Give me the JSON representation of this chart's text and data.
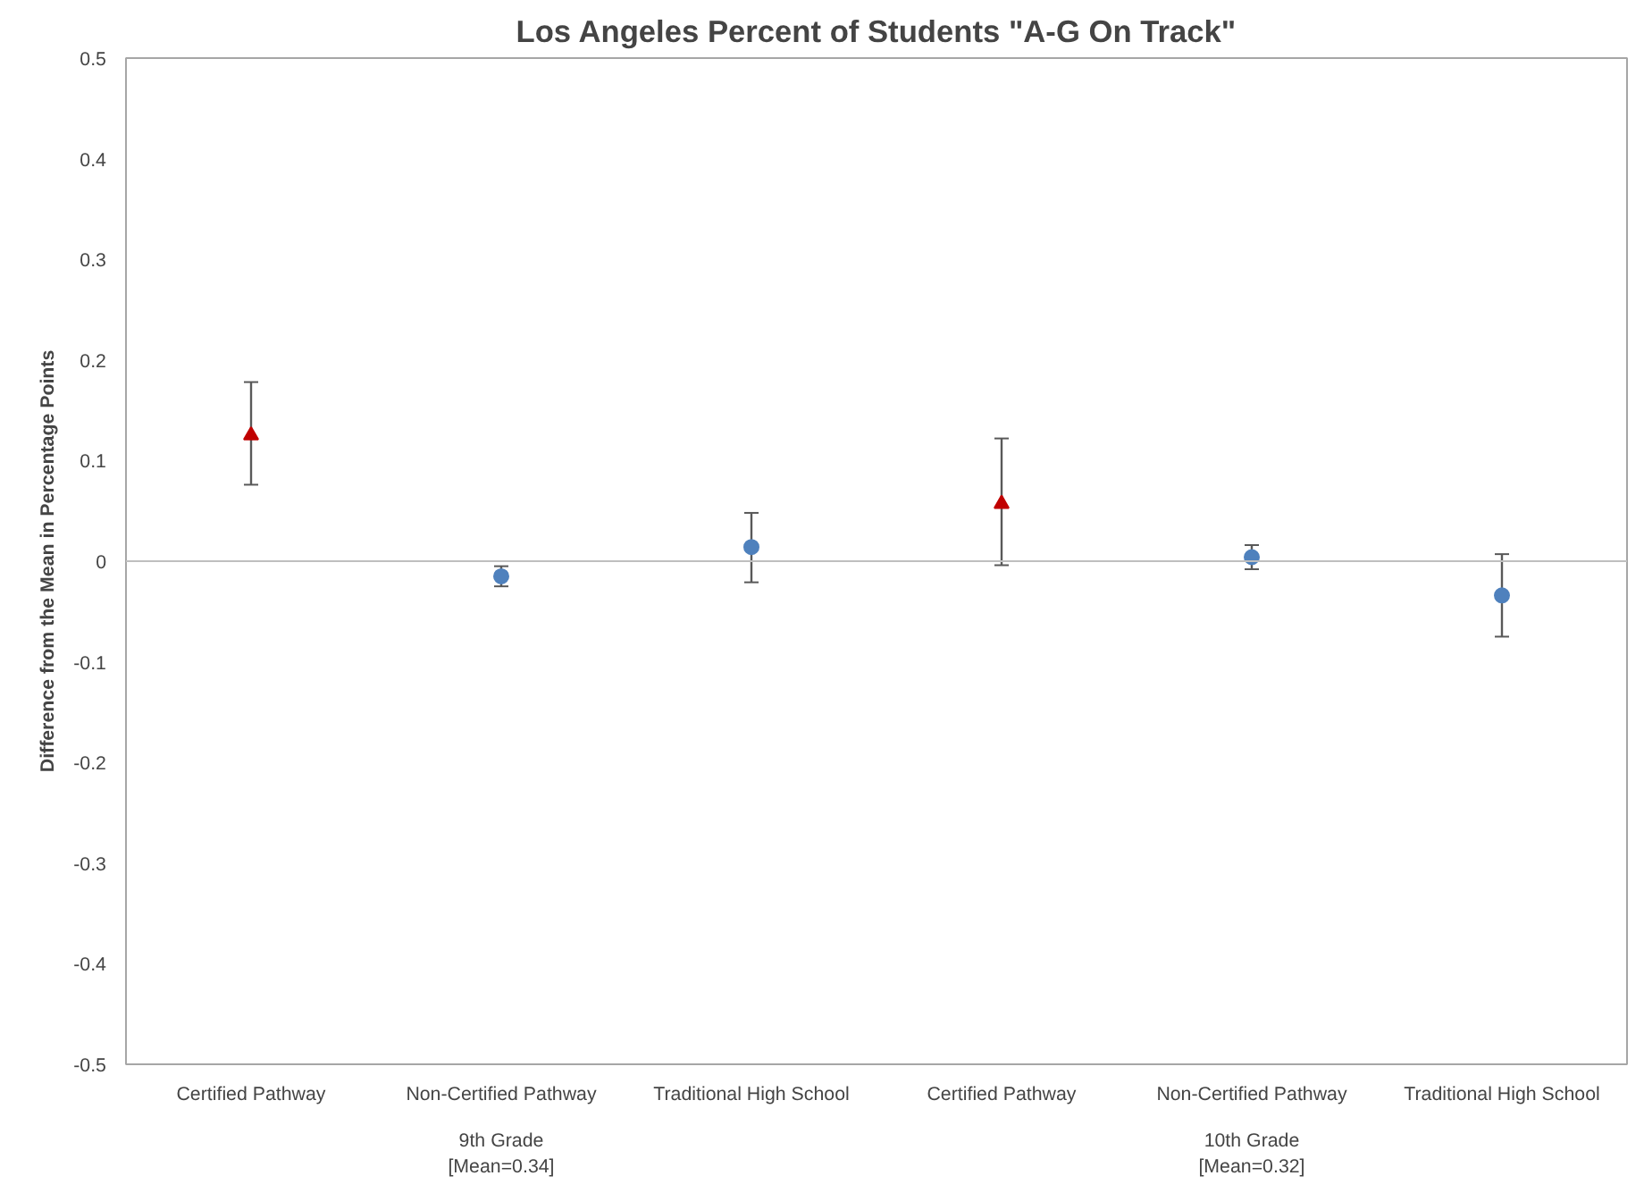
{
  "chart_data": {
    "type": "scatter",
    "title": "Los Angeles Percent of Students \"A-G On Track\"",
    "ylabel": "Difference from the Mean in Percentage Points",
    "categories": [
      "Certified Pathway",
      "Non-Certified Pathway",
      "Traditional High School",
      "Certified Pathway",
      "Non-Certified Pathway",
      "Traditional High School"
    ],
    "series": [
      {
        "color": "#c00000",
        "marker": "triangle",
        "values": [
          0.125,
          null,
          null,
          0.057,
          null,
          null
        ],
        "errors": [
          [
            0.076,
            0.178
          ],
          null,
          null,
          [
            -0.004,
            0.122
          ],
          null,
          null
        ]
      },
      {
        "color": "#4f81bd",
        "marker": "circle",
        "values": [
          null,
          -0.015,
          0.014,
          null,
          0.004,
          -0.034
        ],
        "errors": [
          null,
          [
            -0.025,
            -0.005
          ],
          [
            -0.021,
            0.048
          ],
          null,
          [
            -0.008,
            0.016
          ],
          [
            -0.075,
            0.007
          ]
        ]
      }
    ],
    "annotations": [
      "9th Grade\n[Mean=0.34]",
      "10th Grade\n[Mean=0.32]"
    ],
    "ylim": [
      -0.5,
      0.5
    ],
    "yticks": [
      {
        "value": -0.5,
        "label": "-0.5"
      },
      {
        "value": -0.4,
        "label": "-0.4"
      },
      {
        "value": -0.3,
        "label": "-0.3"
      },
      {
        "value": -0.2,
        "label": "-0.2"
      },
      {
        "value": -0.1,
        "label": "-0.1"
      },
      0,
      0.1,
      0.2,
      0.3,
      0.4,
      0.5
    ],
    "ref_lines": [
      {
        "axis": "y",
        "value": 0,
        "color": "#bfbfbf"
      }
    ],
    "grid": false
  }
}
